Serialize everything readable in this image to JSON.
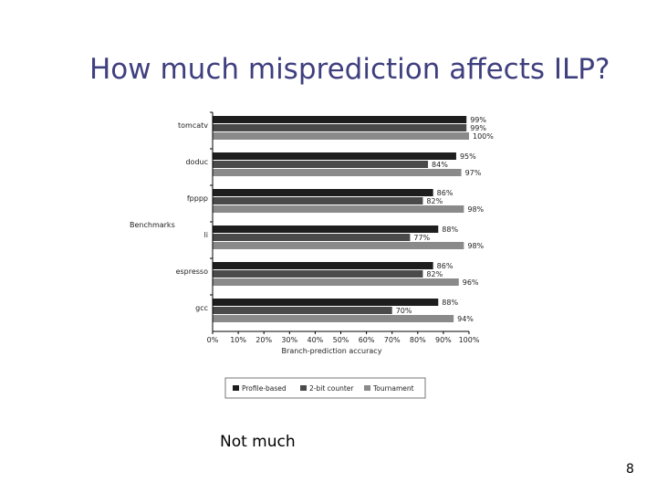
{
  "slide": {
    "title": "How much misprediction affects ILP?",
    "caption": "Not much",
    "page_number": "8"
  },
  "chart_data": {
    "type": "bar",
    "orientation": "horizontal",
    "categories": [
      "tomcatv",
      "doduc",
      "fpppp",
      "li",
      "espresso",
      "gcc"
    ],
    "series": [
      {
        "name": "Profile-based",
        "color": "#1e1e1e",
        "values": [
          99,
          95,
          86,
          88,
          86,
          88
        ],
        "labels": [
          "99%",
          "95%",
          "86%",
          "88%",
          "86%",
          "88%"
        ]
      },
      {
        "name": "2-bit counter",
        "color": "#4a4a4a",
        "values": [
          99,
          84,
          82,
          77,
          82,
          70
        ],
        "labels": [
          "99%",
          "84%",
          "82%",
          "77%",
          "82%",
          "70%"
        ]
      },
      {
        "name": "Tournament",
        "color": "#8a8a8a",
        "values": [
          100,
          97,
          98,
          98,
          96,
          94
        ],
        "labels": [
          "100%",
          "97%",
          "98%",
          "98%",
          "96%",
          "94%"
        ]
      }
    ],
    "xlabel": "Branch-prediction accuracy",
    "ylabel": "Benchmarks",
    "xlim": [
      0,
      100
    ],
    "xticks": [
      "0%",
      "10%",
      "20%",
      "30%",
      "40%",
      "50%",
      "60%",
      "70%",
      "80%",
      "90%",
      "100%"
    ],
    "legend_position": "bottom",
    "grid": false
  }
}
